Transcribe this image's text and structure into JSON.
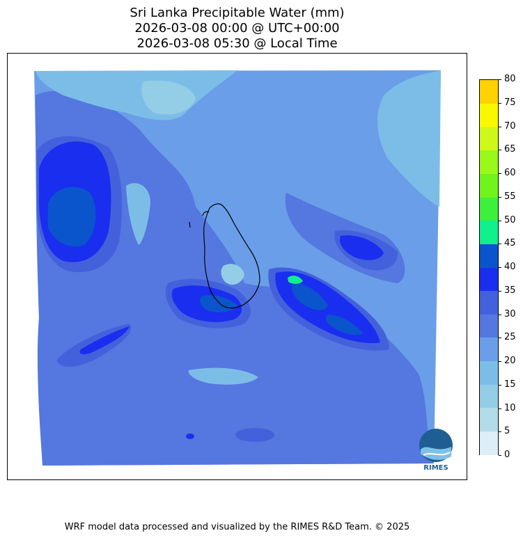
{
  "title": {
    "line1": "Sri Lanka Precipitable Water (mm)",
    "line2": "2026-03-08 00:00 @ UTC+00:00",
    "line3": "2026-03-08 05:30 @ Local Time"
  },
  "colorbar": {
    "ticks": [
      "0",
      "5",
      "10",
      "15",
      "20",
      "25",
      "30",
      "35",
      "40",
      "45",
      "50",
      "55",
      "60",
      "65",
      "70",
      "75",
      "80"
    ],
    "colors": [
      "#ddeef8",
      "#b2dce8",
      "#93cde6",
      "#7cbde8",
      "#6a9ee8",
      "#5577e0",
      "#4461dc",
      "#1a2ef0",
      "#0b55cc",
      "#10f08c",
      "#3cf03c",
      "#70f41c",
      "#9af81a",
      "#cef81a",
      "#f8f800",
      "#ffd200"
    ]
  },
  "logo": {
    "text": "RIMES"
  },
  "footer": "WRF model data processed and visualized by the RIMES R&D Team. © 2025"
}
